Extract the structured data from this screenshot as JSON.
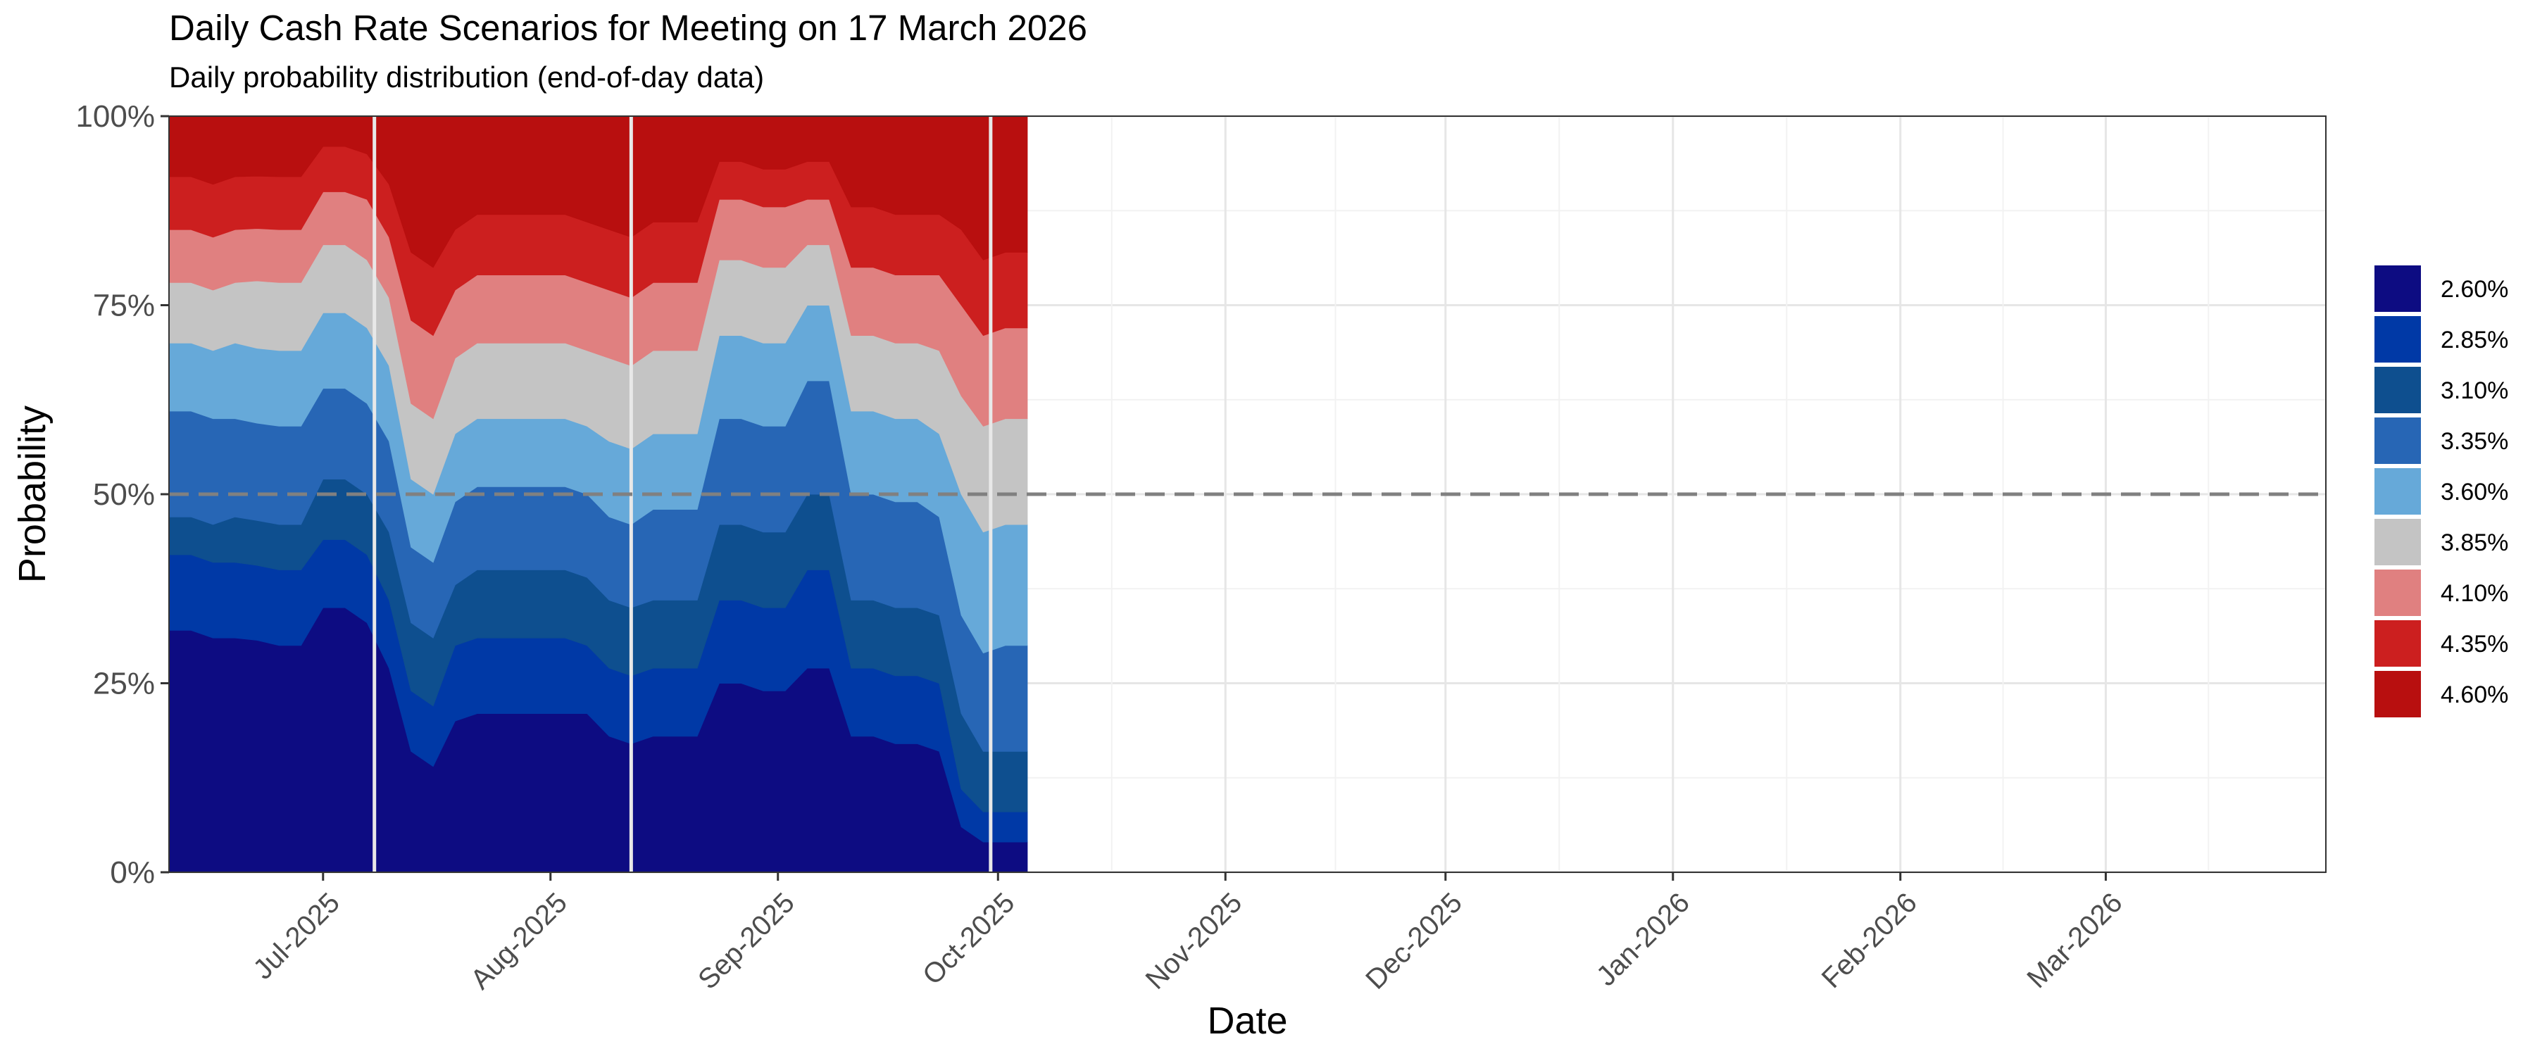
{
  "chart_data": {
    "type": "area",
    "title": "Daily Cash Rate Scenarios for Meeting on 17 March 2026",
    "subtitle": "Daily probability distribution (end-of-day data)",
    "xlabel": "Date",
    "ylabel": "Probability",
    "xlim": [
      "2025-06-10",
      "2026-03-31"
    ],
    "ylim": [
      0,
      1
    ],
    "y_ticks": [
      {
        "value": 0,
        "label": "0%"
      },
      {
        "value": 0.25,
        "label": "25%"
      },
      {
        "value": 0.5,
        "label": "50%"
      },
      {
        "value": 0.75,
        "label": "75%"
      },
      {
        "value": 1,
        "label": "100%"
      }
    ],
    "x_ticks": [
      {
        "date": "2025-07-01",
        "label": "Jul-2025"
      },
      {
        "date": "2025-08-01",
        "label": "Aug-2025"
      },
      {
        "date": "2025-09-01",
        "label": "Sep-2025"
      },
      {
        "date": "2025-10-01",
        "label": "Oct-2025"
      },
      {
        "date": "2025-11-01",
        "label": "Nov-2025"
      },
      {
        "date": "2025-12-01",
        "label": "Dec-2025"
      },
      {
        "date": "2026-01-01",
        "label": "Jan-2026"
      },
      {
        "date": "2026-02-01",
        "label": "Feb-2026"
      },
      {
        "date": "2026-03-01",
        "label": "Mar-2026"
      }
    ],
    "reference_line": {
      "y": 0.5,
      "style": "dashed",
      "color": "#808080"
    },
    "event_lines": [
      "2025-07-08",
      "2025-08-12",
      "2025-09-30"
    ],
    "grid": true,
    "legend_position": "right",
    "dates": [
      "2025-06-10",
      "2025-06-13",
      "2025-06-16",
      "2025-06-19",
      "2025-06-22",
      "2025-06-25",
      "2025-06-28",
      "2025-07-01",
      "2025-07-04",
      "2025-07-07",
      "2025-07-10",
      "2025-07-13",
      "2025-07-16",
      "2025-07-19",
      "2025-07-22",
      "2025-07-25",
      "2025-07-28",
      "2025-07-31",
      "2025-08-03",
      "2025-08-06",
      "2025-08-09",
      "2025-08-12",
      "2025-08-15",
      "2025-08-18",
      "2025-08-21",
      "2025-08-24",
      "2025-08-27",
      "2025-08-30",
      "2025-09-02",
      "2025-09-05",
      "2025-09-08",
      "2025-09-11",
      "2025-09-14",
      "2025-09-17",
      "2025-09-20",
      "2025-09-23",
      "2025-09-26",
      "2025-09-29",
      "2025-10-02",
      "2025-10-05"
    ],
    "series": [
      {
        "name": "2.60%",
        "color": "#0D0C82",
        "values": [
          0.32,
          0.32,
          0.31,
          0.31,
          0.31,
          0.3,
          0.3,
          0.35,
          0.35,
          0.33,
          0.27,
          0.16,
          0.14,
          0.2,
          0.21,
          0.21,
          0.21,
          0.21,
          0.21,
          0.21,
          0.18,
          0.17,
          0.18,
          0.18,
          0.18,
          0.25,
          0.25,
          0.24,
          0.24,
          0.27,
          0.27,
          0.18,
          0.18,
          0.17,
          0.17,
          0.16,
          0.06,
          0.04,
          0.04,
          0.04
        ]
      },
      {
        "name": "2.85%",
        "color": "#0039A6",
        "values": [
          0.1,
          0.1,
          0.1,
          0.1,
          0.1,
          0.1,
          0.1,
          0.09,
          0.09,
          0.09,
          0.09,
          0.08,
          0.08,
          0.1,
          0.1,
          0.1,
          0.1,
          0.1,
          0.1,
          0.09,
          0.09,
          0.09,
          0.09,
          0.09,
          0.09,
          0.11,
          0.11,
          0.11,
          0.11,
          0.13,
          0.13,
          0.09,
          0.09,
          0.09,
          0.09,
          0.09,
          0.05,
          0.04,
          0.04,
          0.04
        ]
      },
      {
        "name": "3.10%",
        "color": "#0E4F8F",
        "values": [
          0.05,
          0.05,
          0.05,
          0.06,
          0.06,
          0.06,
          0.06,
          0.08,
          0.08,
          0.08,
          0.09,
          0.09,
          0.09,
          0.08,
          0.09,
          0.09,
          0.09,
          0.09,
          0.09,
          0.09,
          0.09,
          0.09,
          0.09,
          0.09,
          0.09,
          0.1,
          0.1,
          0.1,
          0.1,
          0.1,
          0.1,
          0.09,
          0.09,
          0.09,
          0.09,
          0.09,
          0.1,
          0.08,
          0.08,
          0.08
        ]
      },
      {
        "name": "3.35%",
        "color": "#2766B5",
        "values": [
          0.14,
          0.14,
          0.14,
          0.13,
          0.13,
          0.13,
          0.13,
          0.12,
          0.12,
          0.12,
          0.12,
          0.1,
          0.1,
          0.11,
          0.11,
          0.11,
          0.11,
          0.11,
          0.11,
          0.11,
          0.11,
          0.11,
          0.12,
          0.12,
          0.12,
          0.14,
          0.14,
          0.14,
          0.14,
          0.15,
          0.15,
          0.14,
          0.14,
          0.14,
          0.14,
          0.13,
          0.13,
          0.13,
          0.14,
          0.14
        ]
      },
      {
        "name": "3.60%",
        "color": "#66A9D9",
        "values": [
          0.09,
          0.09,
          0.09,
          0.1,
          0.1,
          0.1,
          0.1,
          0.1,
          0.1,
          0.1,
          0.1,
          0.09,
          0.09,
          0.09,
          0.09,
          0.09,
          0.09,
          0.09,
          0.09,
          0.09,
          0.1,
          0.1,
          0.1,
          0.1,
          0.1,
          0.11,
          0.11,
          0.11,
          0.11,
          0.1,
          0.1,
          0.11,
          0.11,
          0.11,
          0.11,
          0.11,
          0.16,
          0.16,
          0.16,
          0.16
        ]
      },
      {
        "name": "3.85%",
        "color": "#C4C4C4",
        "values": [
          0.08,
          0.08,
          0.08,
          0.08,
          0.09,
          0.09,
          0.09,
          0.09,
          0.09,
          0.09,
          0.09,
          0.1,
          0.1,
          0.1,
          0.1,
          0.1,
          0.1,
          0.1,
          0.1,
          0.1,
          0.11,
          0.11,
          0.11,
          0.11,
          0.11,
          0.1,
          0.1,
          0.1,
          0.1,
          0.08,
          0.08,
          0.1,
          0.1,
          0.1,
          0.1,
          0.11,
          0.13,
          0.14,
          0.14,
          0.14
        ]
      },
      {
        "name": "4.10%",
        "color": "#E08080",
        "values": [
          0.07,
          0.07,
          0.07,
          0.07,
          0.07,
          0.07,
          0.07,
          0.07,
          0.07,
          0.08,
          0.08,
          0.11,
          0.11,
          0.09,
          0.09,
          0.09,
          0.09,
          0.09,
          0.09,
          0.09,
          0.09,
          0.09,
          0.09,
          0.09,
          0.09,
          0.08,
          0.08,
          0.08,
          0.08,
          0.06,
          0.06,
          0.09,
          0.09,
          0.09,
          0.09,
          0.1,
          0.12,
          0.12,
          0.12,
          0.12
        ]
      },
      {
        "name": "4.35%",
        "color": "#CC1F1F",
        "values": [
          0.07,
          0.07,
          0.07,
          0.07,
          0.07,
          0.07,
          0.07,
          0.06,
          0.06,
          0.06,
          0.07,
          0.09,
          0.09,
          0.08,
          0.08,
          0.08,
          0.08,
          0.08,
          0.08,
          0.08,
          0.08,
          0.08,
          0.08,
          0.08,
          0.08,
          0.05,
          0.05,
          0.05,
          0.05,
          0.05,
          0.05,
          0.08,
          0.08,
          0.08,
          0.08,
          0.08,
          0.1,
          0.1,
          0.1,
          0.1
        ]
      },
      {
        "name": "4.60%",
        "color": "#B80F0F",
        "values": [
          0.08,
          0.08,
          0.09,
          0.08,
          0.08,
          0.08,
          0.08,
          0.04,
          0.04,
          0.05,
          0.09,
          0.18,
          0.2,
          0.15,
          0.13,
          0.13,
          0.13,
          0.13,
          0.13,
          0.14,
          0.15,
          0.16,
          0.14,
          0.14,
          0.14,
          0.06,
          0.06,
          0.07,
          0.07,
          0.06,
          0.06,
          0.12,
          0.12,
          0.13,
          0.13,
          0.13,
          0.15,
          0.19,
          0.18,
          0.18
        ]
      }
    ]
  }
}
